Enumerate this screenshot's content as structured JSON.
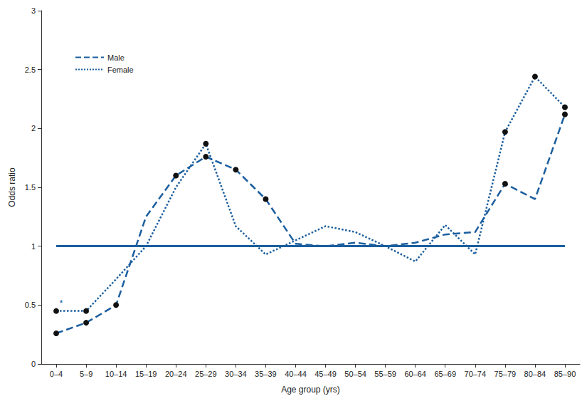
{
  "chart_data": {
    "type": "line",
    "categories": [
      "0–4",
      "5–9",
      "10–14",
      "15–19",
      "20–24",
      "25–29",
      "30–34",
      "35–39",
      "40–44",
      "45–49",
      "50–54",
      "55–59",
      "60–64",
      "65–69",
      "70–74",
      "75–79",
      "80–84",
      "85–90"
    ],
    "series": [
      {
        "name": "Male",
        "color": "#1b5e9e",
        "line_style": "dashed",
        "marker": "circle",
        "values": [
          0.26,
          0.35,
          0.5,
          1.25,
          1.6,
          1.76,
          1.65,
          1.4,
          1.02,
          1.0,
          1.03,
          1.0,
          1.03,
          1.1,
          1.12,
          1.53,
          1.4,
          2.12
        ],
        "significant": [
          true,
          true,
          true,
          false,
          true,
          true,
          true,
          true,
          false,
          false,
          false,
          false,
          false,
          false,
          false,
          true,
          false,
          true
        ]
      },
      {
        "name": "Female",
        "color": "#1b5e9e",
        "line_style": "dotted",
        "marker": "circle",
        "values": [
          0.45,
          0.45,
          0.72,
          1.0,
          1.5,
          1.87,
          1.17,
          0.93,
          1.05,
          1.17,
          1.12,
          1.0,
          0.87,
          1.18,
          0.93,
          1.97,
          2.44,
          2.18
        ],
        "significant": [
          true,
          true,
          false,
          false,
          false,
          true,
          false,
          false,
          false,
          false,
          false,
          false,
          false,
          false,
          false,
          true,
          true,
          true
        ]
      }
    ],
    "annotations": [
      {
        "text": "*",
        "series": "Female",
        "category": "0–4"
      }
    ],
    "reference_line": 1,
    "x_label": "Age group (yrs)",
    "y_label": "Odds ratio",
    "ylim": [
      0,
      3
    ],
    "yticks": [
      0,
      0.5,
      1,
      1.5,
      2,
      2.5,
      3
    ],
    "grid": false,
    "legend": "upper left"
  }
}
